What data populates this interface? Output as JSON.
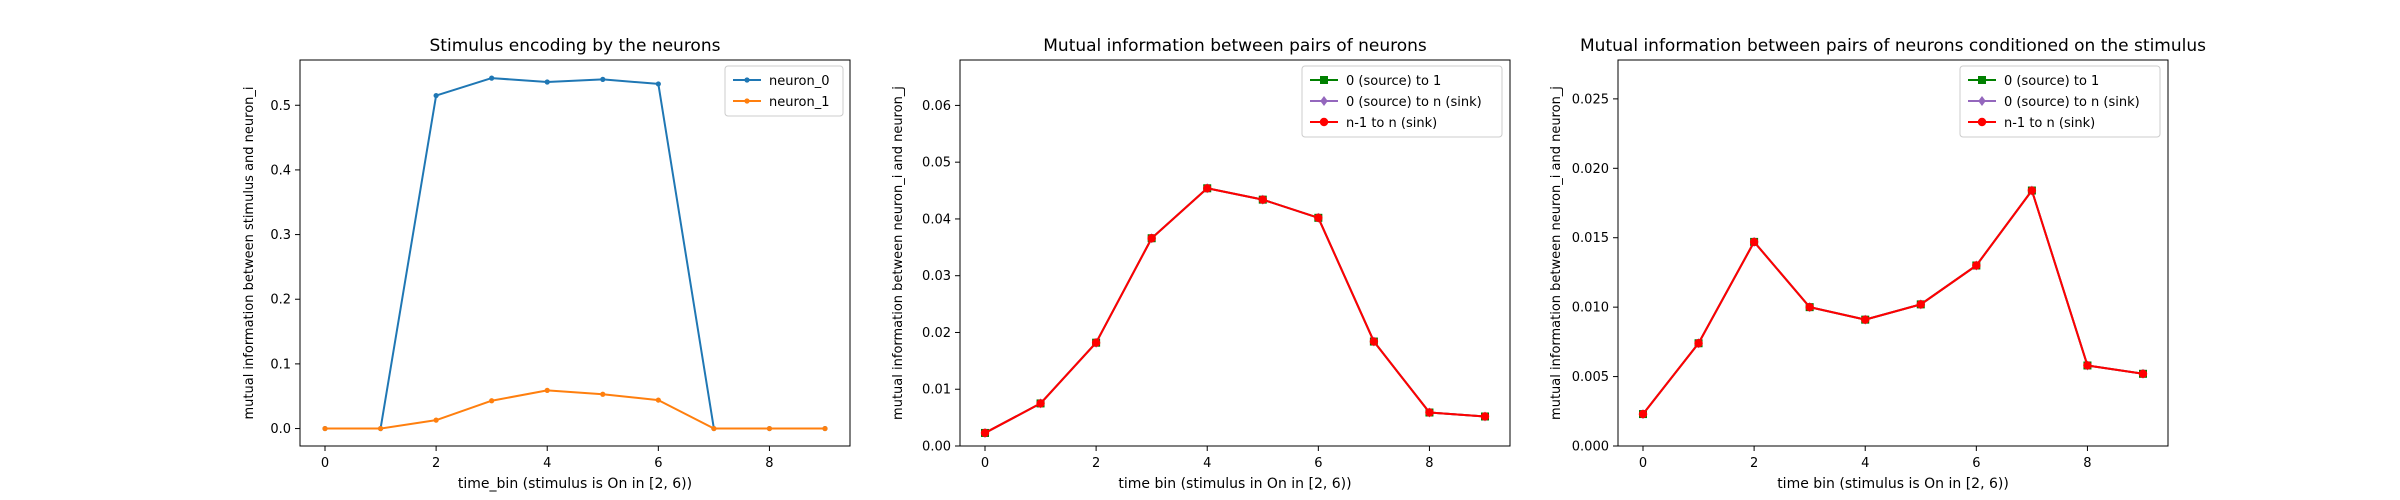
{
  "chart_data": [
    {
      "type": "line",
      "title": "Stimulus encoding by the neurons",
      "xlabel": "time_bin (stimulus is On in [2, 6))",
      "ylabel": "mutual information between stimulus and neuron_i",
      "xlim": [
        -0.45,
        9.45
      ],
      "ylim": [
        -0.027,
        0.57
      ],
      "xticks": [
        0,
        2,
        4,
        6,
        8
      ],
      "yticks": [
        0.0,
        0.1,
        0.2,
        0.3,
        0.4,
        0.5
      ],
      "ytick_labels": [
        "0.0",
        "0.1",
        "0.2",
        "0.3",
        "0.4",
        "0.5"
      ],
      "legend_position": "top-right",
      "x": [
        0,
        1,
        2,
        3,
        4,
        5,
        6,
        7,
        8,
        9
      ],
      "series": [
        {
          "name": "neuron_0",
          "color": "#1f77b4",
          "marker": "dot",
          "values": [
            0.0,
            0.0,
            0.515,
            0.542,
            0.536,
            0.54,
            0.533,
            0.0,
            0.0,
            0.0
          ]
        },
        {
          "name": "neuron_1",
          "color": "#ff7f0e",
          "marker": "dot",
          "values": [
            0.0,
            0.0,
            0.013,
            0.043,
            0.059,
            0.053,
            0.044,
            0.0,
            0.0,
            0.0
          ]
        }
      ],
      "grid": false
    },
    {
      "type": "line",
      "title": "Mutual information between pairs of neurons",
      "xlabel": "time bin (stimulus in On in [2, 6))",
      "ylabel": "mutual information between neuron_i and neuron_j",
      "xlim": [
        -0.45,
        9.45
      ],
      "ylim": [
        0.0,
        0.068
      ],
      "xticks": [
        0,
        2,
        4,
        6,
        8
      ],
      "yticks": [
        0.0,
        0.01,
        0.02,
        0.03,
        0.04,
        0.05,
        0.06
      ],
      "ytick_labels": [
        "0.00",
        "0.01",
        "0.02",
        "0.03",
        "0.04",
        "0.05",
        "0.06"
      ],
      "legend_position": "top-right",
      "x": [
        0,
        1,
        2,
        3,
        4,
        5,
        6,
        7,
        8,
        9
      ],
      "series": [
        {
          "name": "0 (source) to 1",
          "color": "#008000",
          "marker": "square",
          "values": [
            0.0023,
            0.0075,
            0.0182,
            0.0366,
            0.0454,
            0.0434,
            0.0402,
            0.0184,
            0.0059,
            0.0052
          ]
        },
        {
          "name": "0 (source) to n (sink)",
          "color": "#9467bd",
          "marker": "diamond",
          "values": [
            0.0023,
            0.0075,
            0.0182,
            0.0366,
            0.0454,
            0.0434,
            0.0402,
            0.0184,
            0.0059,
            0.0052
          ]
        },
        {
          "name": "n-1 to n (sink)",
          "color": "#ff0000",
          "marker": "dot",
          "values": [
            0.0023,
            0.0075,
            0.0182,
            0.0366,
            0.0454,
            0.0434,
            0.0402,
            0.0184,
            0.0059,
            0.0052
          ]
        }
      ],
      "grid": false
    },
    {
      "type": "line",
      "title": "Mutual information between pairs of neurons conditioned on the stimulus",
      "xlabel": "time bin (stimulus is On in [2, 6))",
      "ylabel": "mutual information between neuron_i and neuron_j",
      "xlim": [
        -0.45,
        9.45
      ],
      "ylim": [
        0.0,
        0.0278
      ],
      "xticks": [
        0,
        2,
        4,
        6,
        8
      ],
      "yticks": [
        0.0,
        0.005,
        0.01,
        0.015,
        0.02,
        0.025
      ],
      "ytick_labels": [
        "0.000",
        "0.005",
        "0.010",
        "0.015",
        "0.020",
        "0.025"
      ],
      "legend_position": "top-right",
      "x": [
        0,
        1,
        2,
        3,
        4,
        5,
        6,
        7,
        8,
        9
      ],
      "series": [
        {
          "name": "0 (source) to 1",
          "color": "#008000",
          "marker": "square",
          "values": [
            0.0023,
            0.0074,
            0.0147,
            0.01,
            0.0091,
            0.0102,
            0.013,
            0.0184,
            0.0058,
            0.0052
          ]
        },
        {
          "name": "0 (source) to n (sink)",
          "color": "#9467bd",
          "marker": "diamond",
          "values": [
            0.0023,
            0.0074,
            0.0147,
            0.01,
            0.0091,
            0.0102,
            0.013,
            0.0184,
            0.0058,
            0.0052
          ]
        },
        {
          "name": "n-1 to n (sink)",
          "color": "#ff0000",
          "marker": "dot",
          "values": [
            0.0023,
            0.0074,
            0.0147,
            0.01,
            0.0091,
            0.0102,
            0.013,
            0.0184,
            0.0058,
            0.0052
          ]
        }
      ],
      "grid": false
    }
  ]
}
